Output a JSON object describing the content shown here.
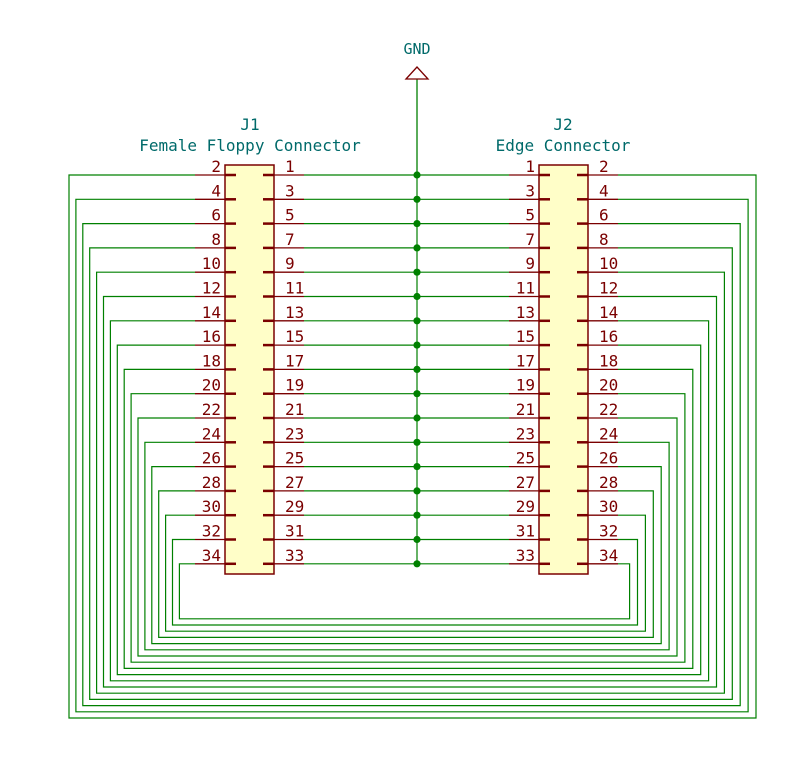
{
  "power": {
    "label": "GND"
  },
  "j1": {
    "ref": "J1",
    "value": "Female Floppy Connector",
    "left_pins": [
      "2",
      "4",
      "6",
      "8",
      "10",
      "12",
      "14",
      "16",
      "18",
      "20",
      "22",
      "24",
      "26",
      "28",
      "30",
      "32",
      "34"
    ],
    "right_pins": [
      "1",
      "3",
      "5",
      "7",
      "9",
      "11",
      "13",
      "15",
      "17",
      "19",
      "21",
      "23",
      "25",
      "27",
      "29",
      "31",
      "33"
    ]
  },
  "j2": {
    "ref": "J2",
    "value": "Edge Connector",
    "left_pins": [
      "1",
      "3",
      "5",
      "7",
      "9",
      "11",
      "13",
      "15",
      "17",
      "19",
      "21",
      "23",
      "25",
      "27",
      "29",
      "31",
      "33"
    ],
    "right_pins": [
      "2",
      "4",
      "6",
      "8",
      "10",
      "12",
      "14",
      "16",
      "18",
      "20",
      "22",
      "24",
      "26",
      "28",
      "30",
      "32",
      "34"
    ]
  },
  "colors": {
    "wire": "#008000",
    "junction": "#008000",
    "pin": "#7a0000",
    "body_fill": "#fffec8",
    "body_stroke": "#7a0000",
    "reference": "#006a6a",
    "power_symbol": "#7a0000"
  }
}
